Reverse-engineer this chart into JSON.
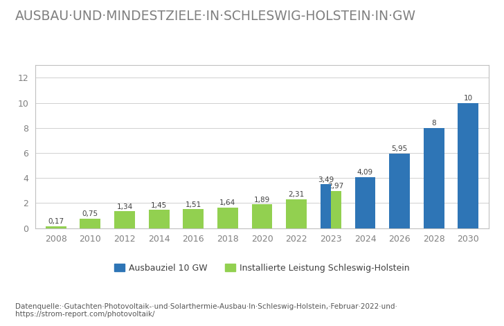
{
  "title": "AUSBAU·UND·MINDESTZIELE·IN·SCHLESWIG-HOLSTEIN·IN·GW",
  "title_fontsize": 13.5,
  "caption_line1": "Datenquelle:·Gutachten·Photovoltaik-·und·Solarthermie-Ausbau·In·Schleswig-Holstein,·Februar·2022·und·",
  "caption_line2": "https://strom-report.com/photovoltaik/",
  "green_years": [
    2008,
    2010,
    2012,
    2014,
    2016,
    2018,
    2020,
    2022,
    2023
  ],
  "green_values": [
    0.17,
    0.75,
    1.34,
    1.45,
    1.51,
    1.64,
    1.89,
    2.31,
    2.97
  ],
  "green_labels": [
    "0,17",
    "0,75",
    "1,34",
    "1,45",
    "1,51",
    "1,64",
    "1,89",
    "2,31",
    "2,97"
  ],
  "blue_years": [
    2023,
    2024,
    2026,
    2028,
    2030
  ],
  "blue_values": [
    3.49,
    4.09,
    5.95,
    8.0,
    10.0
  ],
  "blue_labels": [
    "3,49",
    "4,09",
    "5,95",
    "8",
    "10"
  ],
  "blue_color": "#2e75b6",
  "green_color": "#92d050",
  "ylim": [
    0,
    13
  ],
  "yticks": [
    0,
    2,
    4,
    6,
    8,
    10,
    12
  ],
  "all_years": [
    2008,
    2010,
    2012,
    2014,
    2016,
    2018,
    2020,
    2022,
    2023,
    2024,
    2026,
    2028,
    2030
  ],
  "xtick_labels": [
    "2008",
    "2010",
    "2012",
    "2014",
    "2016",
    "2018",
    "2020",
    "2022",
    "2023",
    "2024",
    "2026",
    "2028",
    "2030"
  ],
  "legend_blue": "Ausbauziel 10 GW",
  "legend_green": "Installierte Leistung Schleswig-Holstein",
  "bar_width": 0.6,
  "side_bar_width": 0.3,
  "label_fontsize": 7.5,
  "axis_fontsize": 9,
  "legend_fontsize": 9,
  "caption_fontsize": 7.5,
  "title_color": "#808080",
  "axis_color": "#808080",
  "background_color": "#ffffff",
  "plot_bg_color": "#ffffff",
  "grid_color": "#d0d0d0",
  "frame_color": "#c0c0c0"
}
